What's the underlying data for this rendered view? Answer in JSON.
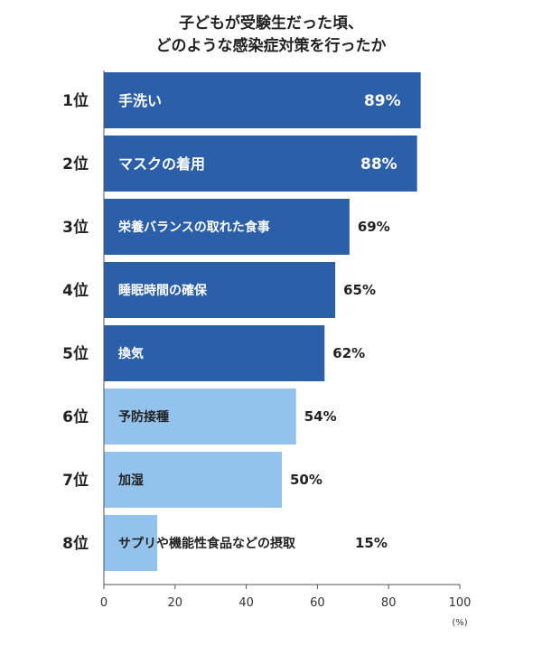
{
  "chart_data": {
    "type": "bar",
    "orientation": "horizontal",
    "title": [
      "子どもが受験生だった頃、",
      "どのような感染症対策を行ったか"
    ],
    "categories": [
      "手洗い",
      "マスクの着用",
      "栄養バランスの取れた食事",
      "睡眠時間の確保",
      "換気",
      "予防接種",
      "加湿",
      "サプリや機能性食品などの摂取"
    ],
    "ranks": [
      "1位",
      "2位",
      "3位",
      "4位",
      "5位",
      "6位",
      "7位",
      "8位"
    ],
    "values": [
      89,
      88,
      69,
      65,
      62,
      54,
      50,
      15
    ],
    "value_labels": [
      "89%",
      "88%",
      "69%",
      "65%",
      "62%",
      "54%",
      "50%",
      "15%"
    ],
    "xlim": [
      0,
      100
    ],
    "xticks": [
      0,
      20,
      40,
      60,
      80,
      100
    ],
    "x_unit": "(%)",
    "grid": false,
    "colors": {
      "dark": "#2b5fa8",
      "light": "#93c3ec"
    },
    "dark_count": 5
  }
}
